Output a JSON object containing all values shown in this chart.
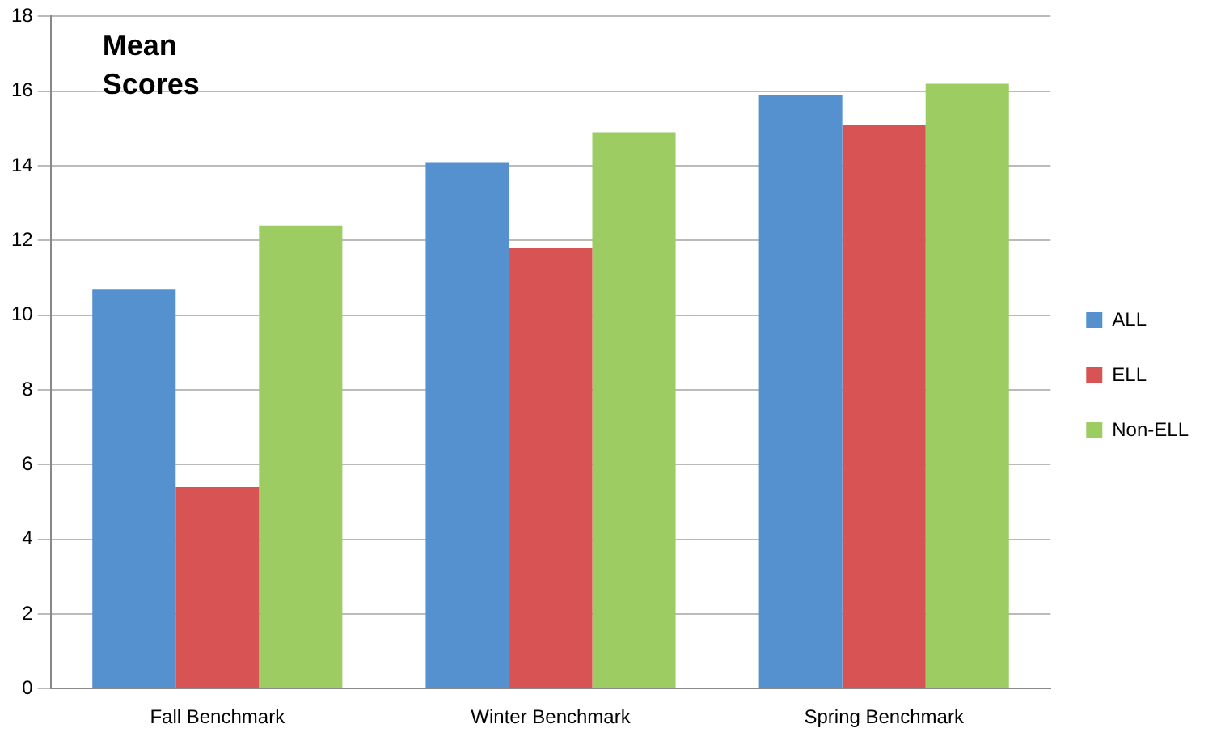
{
  "chart_data": {
    "type": "bar",
    "title": "Mean Scores",
    "categories": [
      "Fall Benchmark",
      "Winter Benchmark",
      "Spring Benchmark"
    ],
    "series": [
      {
        "name": "ALL",
        "color": "#5591cf",
        "values": [
          10.7,
          14.1,
          15.9
        ]
      },
      {
        "name": "ELL",
        "color": "#d85454",
        "values": [
          5.4,
          11.8,
          15.1
        ]
      },
      {
        "name": "Non-ELL",
        "color": "#9ccc62",
        "values": [
          12.4,
          14.9,
          16.2
        ]
      }
    ],
    "ylim": [
      0,
      18
    ],
    "yticks": [
      0,
      2,
      4,
      6,
      8,
      10,
      12,
      14,
      16,
      18
    ],
    "grid": "y",
    "legend": "right"
  }
}
